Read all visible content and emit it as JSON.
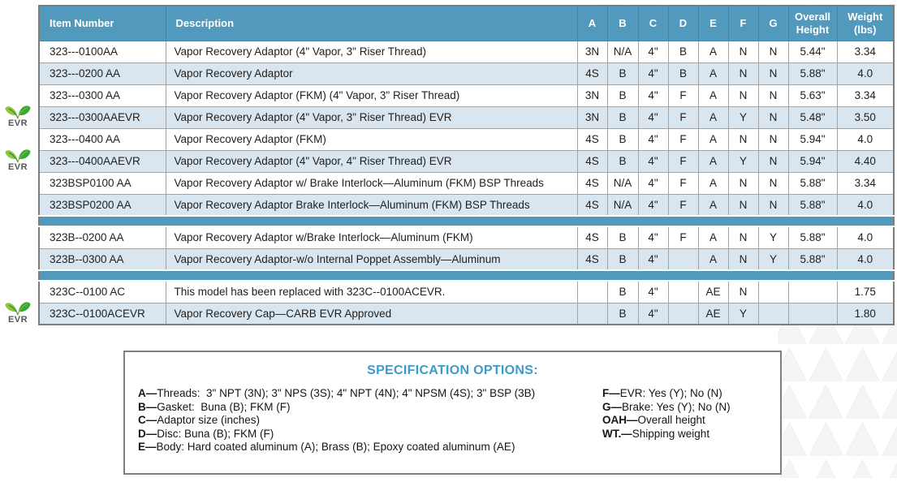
{
  "table": {
    "columns": [
      "Item Number",
      "Description",
      "A",
      "B",
      "C",
      "D",
      "E",
      "F",
      "G",
      "Overall Height",
      "Weight (lbs)"
    ],
    "rows": [
      {
        "item": "323---0100AA",
        "desc": "Vapor Recovery Adaptor (4\" Vapor, 3\" Riser Thread)",
        "a": "3N",
        "b": "N/A",
        "c": "4\"",
        "d": "B",
        "e": "A",
        "f": "N",
        "g": "N",
        "oah": "5.44\"",
        "wt": "3.34",
        "shaded": false,
        "evr": false,
        "sep_after": false
      },
      {
        "item": "323---0200 AA",
        "desc": "Vapor Recovery Adaptor",
        "a": "4S",
        "b": "B",
        "c": "4\"",
        "d": "B",
        "e": "A",
        "f": "N",
        "g": "N",
        "oah": "5.88\"",
        "wt": "4.0",
        "shaded": true,
        "evr": false,
        "sep_after": false
      },
      {
        "item": "323---0300 AA",
        "desc": "Vapor Recovery Adaptor (FKM) (4\" Vapor, 3\" Riser Thread)",
        "a": "3N",
        "b": "B",
        "c": "4\"",
        "d": "F",
        "e": "A",
        "f": "N",
        "g": "N",
        "oah": "5.63\"",
        "wt": "3.34",
        "shaded": false,
        "evr": false,
        "sep_after": false
      },
      {
        "item": "323---0300AAEVR",
        "desc": "Vapor Recovery Adaptor (4\" Vapor, 3\" Riser Thread) EVR",
        "a": "3N",
        "b": "B",
        "c": "4\"",
        "d": "F",
        "e": "A",
        "f": "Y",
        "g": "N",
        "oah": "5.48\"",
        "wt": "3.50",
        "shaded": true,
        "evr": true,
        "sep_after": false
      },
      {
        "item": "323---0400 AA",
        "desc": "Vapor Recovery Adaptor (FKM)",
        "a": "4S",
        "b": "B",
        "c": "4\"",
        "d": "F",
        "e": "A",
        "f": "N",
        "g": "N",
        "oah": "5.94\"",
        "wt": "4.0",
        "shaded": false,
        "evr": false,
        "sep_after": false
      },
      {
        "item": "323---0400AAEVR",
        "desc": "Vapor Recovery Adaptor (4\" Vapor, 4\" Riser Thread) EVR",
        "a": "4S",
        "b": "B",
        "c": "4\"",
        "d": "F",
        "e": "A",
        "f": "Y",
        "g": "N",
        "oah": "5.94\"",
        "wt": "4.40",
        "shaded": true,
        "evr": true,
        "sep_after": false
      },
      {
        "item": "323BSP0100 AA",
        "desc": "Vapor Recovery Adaptor w/ Brake Interlock—Aluminum (FKM) BSP Threads",
        "a": "4S",
        "b": "N/A",
        "c": "4\"",
        "d": "F",
        "e": "A",
        "f": "N",
        "g": "N",
        "oah": "5.88\"",
        "wt": "3.34",
        "shaded": false,
        "evr": false,
        "sep_after": false
      },
      {
        "item": "323BSP0200 AA",
        "desc": "Vapor Recovery Adaptor Brake Interlock—Aluminum (FKM) BSP Threads",
        "a": "4S",
        "b": "N/A",
        "c": "4\"",
        "d": "F",
        "e": "A",
        "f": "N",
        "g": "N",
        "oah": "5.88\"",
        "wt": "4.0",
        "shaded": true,
        "evr": false,
        "sep_after": true
      },
      {
        "item": "323B--0200 AA",
        "desc": "Vapor Recovery Adaptor w/Brake Interlock—Aluminum (FKM)",
        "a": "4S",
        "b": "B",
        "c": "4\"",
        "d": "F",
        "e": "A",
        "f": "N",
        "g": "Y",
        "oah": "5.88\"",
        "wt": "4.0",
        "shaded": false,
        "evr": false,
        "sep_after": false
      },
      {
        "item": "323B--0300 AA",
        "desc": "Vapor Recovery Adaptor-w/o Internal Poppet Assembly—Aluminum",
        "a": "4S",
        "b": "B",
        "c": "4\"",
        "d": "",
        "e": "A",
        "f": "N",
        "g": "Y",
        "oah": "5.88\"",
        "wt": "4.0",
        "shaded": true,
        "evr": false,
        "sep_after": true
      },
      {
        "item": "323C--0100 AC",
        "desc": "This model has been replaced with 323C--0100ACEVR.",
        "a": "",
        "b": "B",
        "c": "4\"",
        "d": "",
        "e": "AE",
        "f": "N",
        "g": "",
        "oah": "",
        "wt": "1.75",
        "shaded": false,
        "evr": false,
        "sep_after": false
      },
      {
        "item": "323C--0100ACEVR",
        "desc": "Vapor Recovery Cap—CARB EVR Approved",
        "a": "",
        "b": "B",
        "c": "4\"",
        "d": "",
        "e": "AE",
        "f": "Y",
        "g": "",
        "oah": "",
        "wt": "1.80",
        "shaded": true,
        "evr": true,
        "sep_after": false
      }
    ]
  },
  "spec_box": {
    "title": "SPECIFICATION OPTIONS:",
    "left_items": [
      {
        "key": "A—",
        "text": "Threads:  3\" NPT (3N); 3\" NPS (3S); 4\" NPT (4N); 4\" NPSM (4S); 3\" BSP (3B)"
      },
      {
        "key": "B—",
        "text": "Gasket:  Buna (B); FKM (F)"
      },
      {
        "key": "C—",
        "text": "Adaptor size (inches)"
      },
      {
        "key": "D—",
        "text": "Disc: Buna (B); FKM (F)"
      },
      {
        "key": "E—",
        "text": "Body: Hard coated aluminum (A); Brass (B); Epoxy coated aluminum (AE)"
      }
    ],
    "right_items": [
      {
        "key": "F—",
        "text": "EVR: Yes (Y); No (N)"
      },
      {
        "key": "G—",
        "text": "Brake: Yes (Y); No (N)"
      },
      {
        "key": "OAH—",
        "text": "Overall height"
      },
      {
        "key": "WT.—",
        "text": "Shipping weight"
      }
    ]
  },
  "evr_badge_label": "EVR",
  "colors": {
    "header_blue": "#5299be",
    "row_shade_blue": "#d9e6f0",
    "separator_blue": "#4f96bb",
    "spec_title_blue": "#3e9bc9",
    "leaf_green_light": "#8dc63f",
    "leaf_green_dark": "#39a935",
    "watermark_gray": "#f5f5f5",
    "border_gray": "#7c7c7c"
  }
}
